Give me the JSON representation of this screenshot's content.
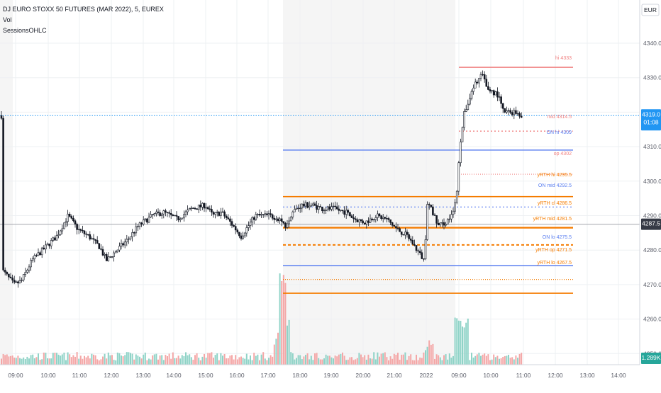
{
  "header": {
    "symbol_line": "DJ EURO STOXX 50 FUTURES (MAR 2022), 5, EUREX",
    "indicator_vol": "Vol",
    "indicator_sessions": "SessionsOHLC"
  },
  "currency_badge": "EUR",
  "price_axis": {
    "ticks": [
      "4340.0",
      "4330.0",
      "4320.0",
      "4310.0",
      "4300.0",
      "4290.0",
      "4280.0",
      "4270.0",
      "4260.0",
      "4250.0"
    ],
    "current_price": "4319.0",
    "countdown": "01:08",
    "crosshair_price": "4287.5",
    "volume_label": "1.289K"
  },
  "time_axis": {
    "ticks": [
      "09:00",
      "10:00",
      "11:00",
      "12:00",
      "13:00",
      "14:00",
      "15:00",
      "16:00",
      "17:00",
      "18:00",
      "19:00",
      "20:00",
      "21:00",
      "2022",
      "09:00",
      "10:00",
      "11:00",
      "12:00",
      "13:00",
      "14:00"
    ]
  },
  "chart_data": {
    "type": "line",
    "title": "DJ EURO STOXX 50 FUTURES (MAR 2022), 5, EUREX",
    "xlabel": "",
    "ylabel": "",
    "ylim": [
      4244,
      4346
    ],
    "grid": true,
    "series": [
      {
        "name": "",
        "x": [
          "09:00",
          "09:30",
          "10:00",
          "10:30",
          "11:00",
          "11:30",
          "12:00",
          "12:30",
          "13:00",
          "13:30",
          "14:00",
          "14:30",
          "15:00",
          "15:30",
          "16:00",
          "16:30",
          "17:00",
          "17:15",
          "17:30",
          "18:00",
          "18:30",
          "19:00",
          "19:30",
          "20:00",
          "20:30",
          "21:00",
          "21:30",
          "22:00",
          "08:00",
          "08:30",
          "09:00",
          "09:15",
          "09:30",
          "10:00",
          "10:30",
          "11:00"
        ],
        "values": [
          4273,
          4272,
          4280,
          4289,
          4282,
          4280,
          4277,
          4283,
          4290,
          4289,
          4290,
          4292,
          4293,
          4290,
          4291,
          4287,
          4289,
          4291,
          4288,
          4294,
          4294,
          4292,
          4290,
          4290,
          4289,
          4286,
          4281,
          4276,
          4296,
          4286,
          4288,
          4308,
          4324,
          4330,
          4323,
          4319
        ]
      }
    ],
    "session_levels": [
      {
        "label": "hi 4333",
        "value": 4333,
        "color": "#f08080"
      },
      {
        "label": "mid 4314.5",
        "value": 4314.5,
        "color": "#f08080"
      },
      {
        "label": "ON hi 4309",
        "value": 4309,
        "color": "#5b7ff0"
      },
      {
        "label": "op 4302",
        "value": 4302,
        "color": "#f08080"
      },
      {
        "label": "yRTH hi 4295.5",
        "value": 4295.5,
        "color": "#f57c00"
      },
      {
        "label": "ON mid 4292.5",
        "value": 4292.5,
        "color": "#5b7ff0"
      },
      {
        "label": "yRTH cl 4286.5",
        "value": 4286.5,
        "color": "#f57c00"
      },
      {
        "label": "yRTH mid 4281.5",
        "value": 4281.5,
        "color": "#f57c00"
      },
      {
        "label": "ON lo 4275.5",
        "value": 4275.5,
        "color": "#5b7ff0"
      },
      {
        "label": "yRTH op 4271.5",
        "value": 4271.5,
        "color": "#f57c00"
      },
      {
        "label": "yRTH lo 4267.5",
        "value": 4267.5,
        "color": "#f57c00"
      }
    ]
  }
}
